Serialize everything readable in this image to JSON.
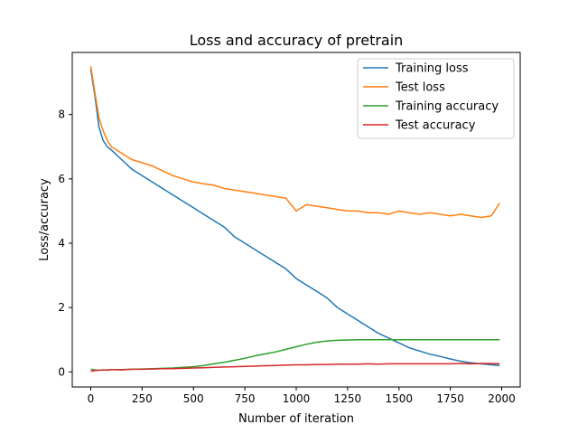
{
  "chart_data": {
    "type": "line",
    "title": "Loss and accuracy of pretrain",
    "xlabel": "Number of iteration",
    "ylabel": "Loss/accuracy",
    "xlim": [
      -90,
      2090
    ],
    "ylim": [
      -0.47,
      9.93
    ],
    "x_ticks": [
      0,
      250,
      500,
      750,
      1000,
      1250,
      1500,
      1750,
      2000
    ],
    "y_ticks": [
      0,
      2,
      4,
      6,
      8
    ],
    "grid": false,
    "legend_position": "top-right",
    "x": [
      0,
      20,
      40,
      60,
      80,
      100,
      150,
      200,
      250,
      300,
      350,
      400,
      450,
      500,
      550,
      600,
      650,
      700,
      750,
      800,
      850,
      900,
      950,
      1000,
      1050,
      1100,
      1150,
      1200,
      1250,
      1300,
      1350,
      1400,
      1450,
      1500,
      1550,
      1600,
      1650,
      1700,
      1750,
      1800,
      1850,
      1900,
      1950,
      1990
    ],
    "series": [
      {
        "name": "Training loss",
        "color": "#1f77b4",
        "values": [
          9.4,
          8.6,
          7.6,
          7.2,
          7.0,
          6.9,
          6.6,
          6.3,
          6.1,
          5.9,
          5.7,
          5.5,
          5.3,
          5.1,
          4.9,
          4.7,
          4.5,
          4.2,
          4.0,
          3.8,
          3.6,
          3.4,
          3.2,
          2.9,
          2.7,
          2.5,
          2.3,
          2.0,
          1.8,
          1.6,
          1.4,
          1.2,
          1.05,
          0.9,
          0.75,
          0.65,
          0.55,
          0.48,
          0.4,
          0.33,
          0.28,
          0.25,
          0.22,
          0.2
        ]
      },
      {
        "name": "Test loss",
        "color": "#ff7f0e",
        "values": [
          9.5,
          8.7,
          7.9,
          7.5,
          7.2,
          7.0,
          6.8,
          6.6,
          6.5,
          6.4,
          6.25,
          6.1,
          6.0,
          5.9,
          5.85,
          5.8,
          5.7,
          5.65,
          5.6,
          5.55,
          5.5,
          5.45,
          5.4,
          5.0,
          5.2,
          5.15,
          5.1,
          5.05,
          5.0,
          5.0,
          4.95,
          4.95,
          4.9,
          5.0,
          4.95,
          4.9,
          4.95,
          4.9,
          4.85,
          4.9,
          4.85,
          4.8,
          4.85,
          5.25
        ]
      },
      {
        "name": "Training accuracy",
        "color": "#2ca02c",
        "values": [
          0.08,
          0.06,
          0.05,
          0.06,
          0.06,
          0.07,
          0.07,
          0.08,
          0.09,
          0.1,
          0.11,
          0.12,
          0.14,
          0.16,
          0.2,
          0.25,
          0.3,
          0.36,
          0.42,
          0.5,
          0.56,
          0.62,
          0.7,
          0.78,
          0.86,
          0.92,
          0.96,
          0.98,
          0.99,
          1.0,
          1.0,
          1.0,
          1.0,
          1.0,
          1.0,
          1.0,
          1.0,
          1.0,
          1.0,
          1.0,
          1.0,
          1.0,
          1.0,
          1.0
        ]
      },
      {
        "name": "Test accuracy",
        "color": "#d62728",
        "values": [
          0.02,
          0.04,
          0.05,
          0.06,
          0.05,
          0.07,
          0.06,
          0.08,
          0.08,
          0.09,
          0.1,
          0.1,
          0.11,
          0.12,
          0.13,
          0.14,
          0.15,
          0.16,
          0.17,
          0.18,
          0.19,
          0.2,
          0.21,
          0.22,
          0.22,
          0.23,
          0.23,
          0.24,
          0.24,
          0.24,
          0.25,
          0.24,
          0.25,
          0.25,
          0.25,
          0.25,
          0.25,
          0.25,
          0.25,
          0.26,
          0.25,
          0.26,
          0.26,
          0.25
        ]
      }
    ]
  }
}
